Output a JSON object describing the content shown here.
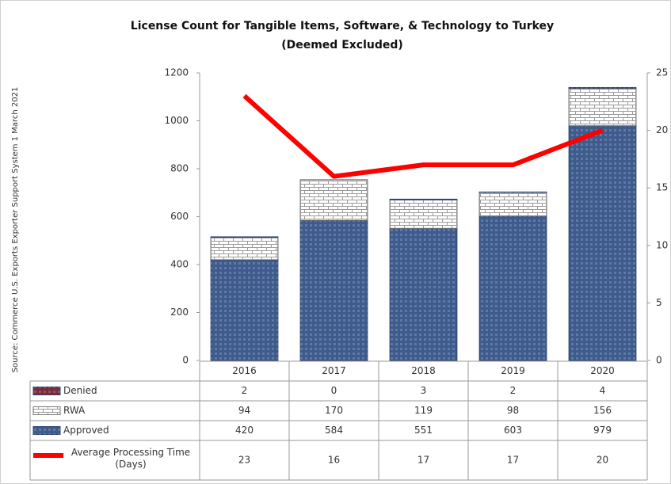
{
  "chart_data": {
    "type": "stacked_bar_line",
    "title": "License Count for Tangible Items, Software, & Technology to Turkey",
    "subtitle": "(Deemed Excluded)",
    "source": "Source: Commerce U.S. Exports Exporter Support System 1 March 2021",
    "categories": [
      "2016",
      "2017",
      "2018",
      "2019",
      "2020"
    ],
    "series": [
      {
        "name": "Denied",
        "color": "#7b2b3b",
        "type": "bar",
        "values": [
          2,
          0,
          3,
          2,
          4
        ]
      },
      {
        "name": "RWA",
        "color": "#ffffff",
        "type": "bar",
        "values": [
          94,
          170,
          119,
          98,
          156
        ]
      },
      {
        "name": "Approved",
        "color": "#3e5b8e",
        "type": "bar",
        "values": [
          420,
          584,
          551,
          603,
          979
        ]
      },
      {
        "name": "Average Processing Time (Days)",
        "color": "#ff0000",
        "type": "line",
        "axis": "y2",
        "values": [
          23,
          16,
          17,
          17,
          20
        ]
      }
    ],
    "ylim": [
      0,
      1200
    ],
    "yticks": [
      0,
      200,
      400,
      600,
      800,
      1000,
      1200
    ],
    "y2lim": [
      0,
      25
    ],
    "y2ticks": [
      0,
      5,
      10,
      15,
      20,
      25
    ],
    "grid": false
  }
}
